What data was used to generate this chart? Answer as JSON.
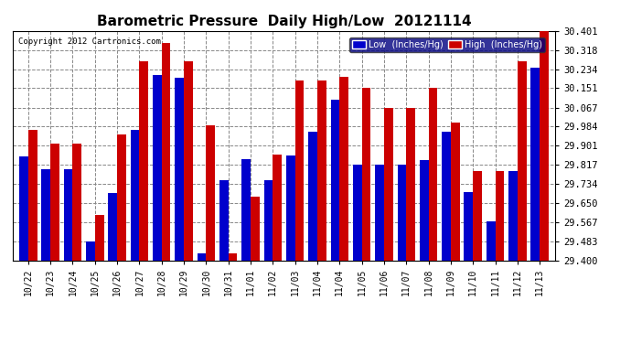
{
  "title": "Barometric Pressure  Daily High/Low  20121114",
  "copyright": "Copyright 2012 Cartronics.com",
  "legend_low": "Low  (Inches/Hg)",
  "legend_high": "High  (Inches/Hg)",
  "dates": [
    "10/22",
    "10/23",
    "10/24",
    "10/25",
    "10/26",
    "10/27",
    "10/28",
    "10/29",
    "10/30",
    "10/31",
    "11/01",
    "11/02",
    "11/03",
    "11/04",
    "11/04",
    "11/05",
    "11/06",
    "11/07",
    "11/08",
    "11/09",
    "11/10",
    "11/11",
    "11/12",
    "11/13"
  ],
  "low": [
    29.853,
    29.797,
    29.8,
    29.483,
    29.693,
    29.97,
    30.21,
    30.197,
    29.43,
    29.75,
    29.843,
    29.75,
    29.857,
    29.96,
    30.1,
    29.82,
    29.817,
    29.82,
    29.84,
    29.96,
    29.7,
    29.57,
    29.79,
    30.24
  ],
  "high": [
    29.97,
    29.91,
    29.91,
    29.6,
    29.95,
    30.27,
    30.35,
    30.27,
    29.99,
    29.43,
    29.68,
    29.863,
    30.185,
    30.185,
    30.2,
    30.151,
    30.067,
    30.067,
    30.151,
    30.0,
    29.79,
    29.79,
    30.27,
    30.401
  ],
  "ylim": [
    29.4,
    30.401
  ],
  "yticks": [
    29.4,
    29.483,
    29.567,
    29.65,
    29.734,
    29.817,
    29.901,
    29.984,
    30.067,
    30.151,
    30.234,
    30.318,
    30.401
  ],
  "low_color": "#0000cc",
  "high_color": "#cc0000",
  "bg_color": "#ffffff",
  "grid_color": "#888888",
  "title_fontsize": 11,
  "bar_width": 0.4,
  "legend_bg": "#000080"
}
